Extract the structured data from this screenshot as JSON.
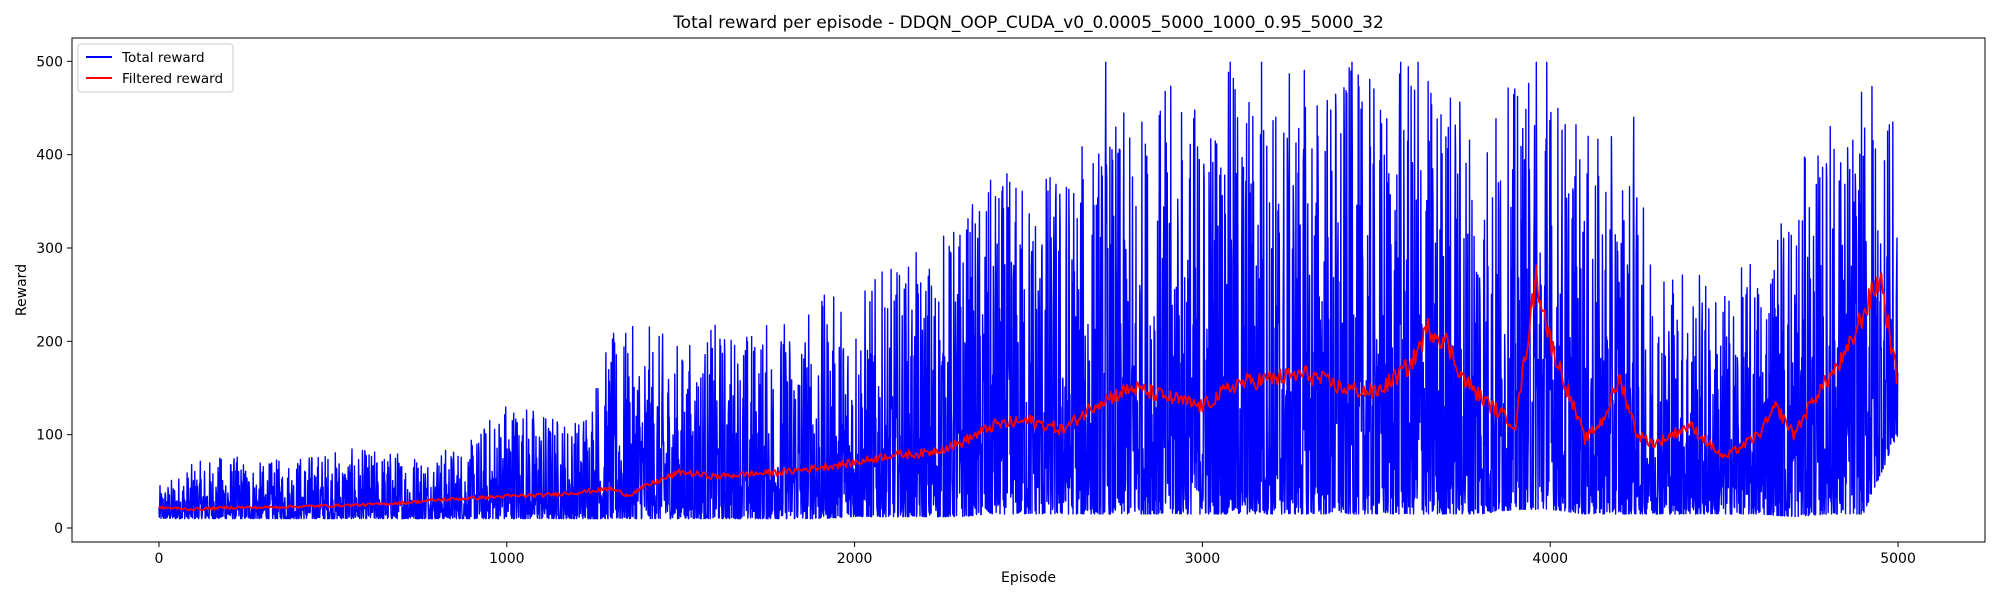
{
  "chart_data": {
    "type": "line",
    "title": "Total reward per episode - DDQN_OOP_CUDA_v0_0.0005_5000_1000_0.95_5000_32",
    "xlabel": "Episode",
    "ylabel": "Reward",
    "xlim": [
      -250,
      5250
    ],
    "ylim": [
      -15,
      525
    ],
    "x_ticks": [
      0,
      1000,
      2000,
      3000,
      4000,
      5000
    ],
    "y_ticks": [
      0,
      100,
      200,
      300,
      400,
      500
    ],
    "x_tick_labels": [
      "0",
      "1000",
      "2000",
      "3000",
      "4000",
      "5000"
    ],
    "y_tick_labels": [
      "0",
      "100",
      "200",
      "300",
      "400",
      "500"
    ],
    "grid": false,
    "legend_position": "top-left",
    "episodes": 5000,
    "series": [
      {
        "name": "Total reward",
        "color": "#0000ff",
        "envelope": {
          "x": [
            0,
            100,
            200,
            300,
            400,
            500,
            600,
            700,
            800,
            900,
            1000,
            1100,
            1200,
            1300,
            1400,
            1500,
            1600,
            1700,
            1800,
            1900,
            2000,
            2100,
            2200,
            2300,
            2400,
            2500,
            2600,
            2700,
            2800,
            2900,
            3000,
            3100,
            3200,
            3300,
            3400,
            3500,
            3600,
            3700,
            3800,
            3900,
            4000,
            4100,
            4200,
            4300,
            4400,
            4500,
            4600,
            4700,
            4800,
            4900,
            5000
          ],
          "low": [
            10,
            10,
            10,
            10,
            10,
            10,
            10,
            10,
            10,
            10,
            10,
            10,
            10,
            10,
            10,
            10,
            10,
            10,
            10,
            10,
            12,
            12,
            12,
            12,
            15,
            15,
            15,
            15,
            15,
            15,
            15,
            15,
            15,
            15,
            15,
            15,
            15,
            15,
            15,
            20,
            20,
            15,
            15,
            15,
            15,
            15,
            15,
            12,
            15,
            15,
            100
          ],
          "high": [
            45,
            70,
            80,
            70,
            80,
            85,
            85,
            85,
            85,
            95,
            150,
            130,
            120,
            210,
            220,
            200,
            220,
            220,
            230,
            250,
            260,
            280,
            300,
            340,
            380,
            390,
            400,
            430,
            450,
            480,
            470,
            500,
            480,
            500,
            500,
            480,
            500,
            500,
            460,
            480,
            500,
            420,
            420,
            310,
            290,
            260,
            300,
            390,
            420,
            470,
            430
          ]
        },
        "peaks": [
          {
            "x": 2722,
            "y": 499
          },
          {
            "x": 3080,
            "y": 499
          },
          {
            "x": 3170,
            "y": 499
          },
          {
            "x": 3430,
            "y": 499
          },
          {
            "x": 3570,
            "y": 499
          },
          {
            "x": 3620,
            "y": 499
          },
          {
            "x": 3960,
            "y": 499
          },
          {
            "x": 3990,
            "y": 499
          },
          {
            "x": 4240,
            "y": 440
          },
          {
            "x": 4805,
            "y": 430
          },
          {
            "x": 4925,
            "y": 473
          },
          {
            "x": 4975,
            "y": 432
          }
        ]
      },
      {
        "name": "Filtered reward",
        "color": "#ff0000",
        "x": [
          0,
          100,
          200,
          300,
          400,
          500,
          600,
          700,
          800,
          900,
          1000,
          1100,
          1200,
          1300,
          1350,
          1400,
          1500,
          1600,
          1700,
          1800,
          1900,
          2000,
          2100,
          2200,
          2300,
          2400,
          2500,
          2600,
          2700,
          2800,
          2900,
          3000,
          3100,
          3200,
          3300,
          3400,
          3500,
          3600,
          3650,
          3700,
          3750,
          3800,
          3900,
          3960,
          4000,
          4100,
          4150,
          4200,
          4250,
          4300,
          4400,
          4500,
          4600,
          4650,
          4700,
          4760,
          4800,
          4850,
          4900,
          4950,
          5000
        ],
        "values": [
          22,
          20,
          22,
          22,
          23,
          24,
          25,
          27,
          30,
          32,
          34,
          35,
          38,
          42,
          35,
          45,
          60,
          55,
          58,
          60,
          65,
          70,
          78,
          80,
          90,
          110,
          115,
          105,
          135,
          150,
          140,
          130,
          155,
          160,
          165,
          150,
          145,
          175,
          215,
          200,
          160,
          140,
          110,
          270,
          200,
          95,
          115,
          160,
          100,
          90,
          110,
          75,
          100,
          130,
          100,
          140,
          160,
          185,
          230,
          270,
          150
        ]
      }
    ]
  }
}
